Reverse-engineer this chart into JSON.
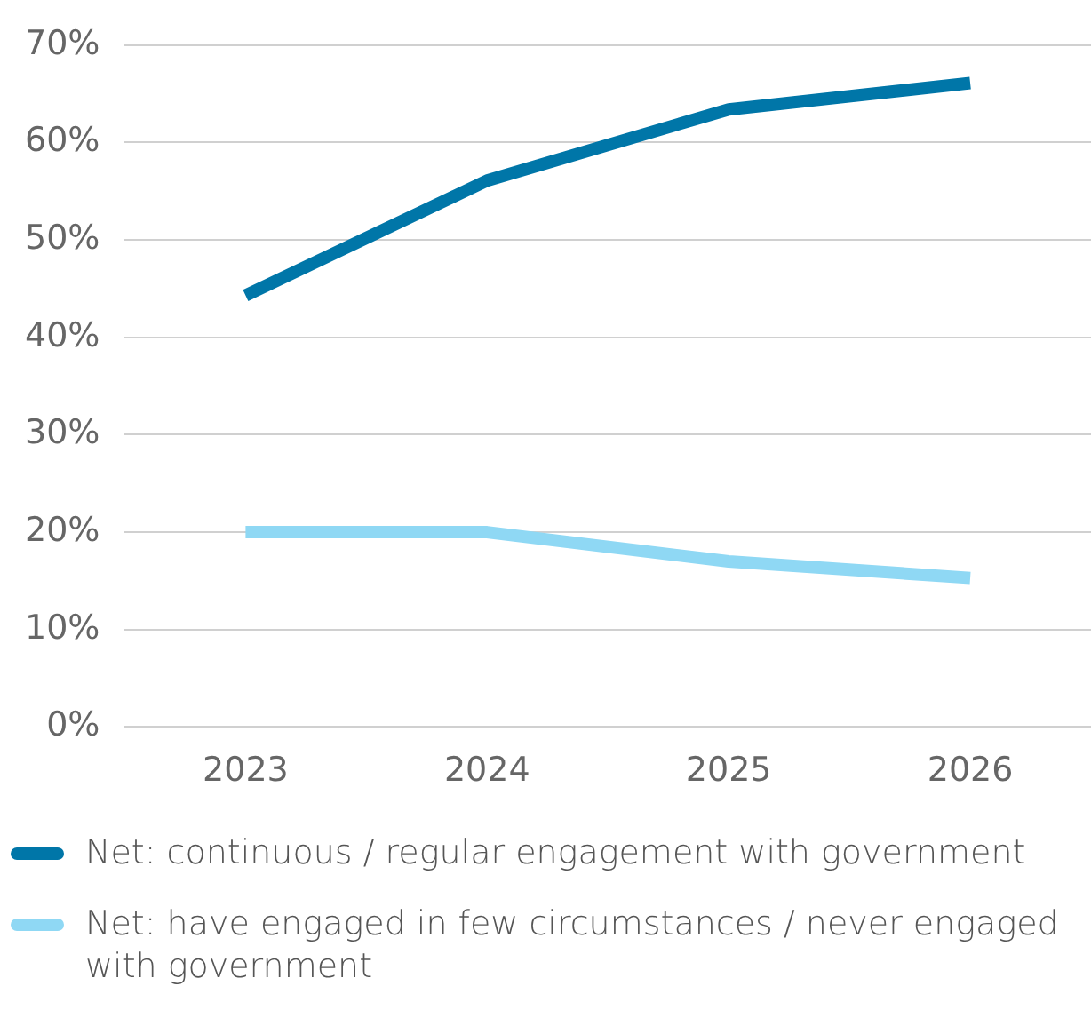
{
  "chart_data": {
    "type": "line",
    "categories": [
      "2023",
      "2024",
      "2025",
      "2026"
    ],
    "series": [
      {
        "name": "Net: continuous / regular engagement with government",
        "color": "#0076a8",
        "values": [
          44.3,
          56.1,
          63.4,
          66.1
        ]
      },
      {
        "name": "Net: have engaged in few circumstances / never engaged with government",
        "color": "#8fd8f4",
        "values": [
          20,
          20,
          17,
          15.3
        ]
      }
    ],
    "ylim": [
      0,
      70
    ],
    "yticks": [
      {
        "value": 0,
        "label": "0%"
      },
      {
        "value": 10,
        "label": "10%"
      },
      {
        "value": 20,
        "label": "20%"
      },
      {
        "value": 30,
        "label": "30%"
      },
      {
        "value": 40,
        "label": "40%"
      },
      {
        "value": 50,
        "label": "50%"
      },
      {
        "value": 60,
        "label": "60%"
      },
      {
        "value": 70,
        "label": "70%"
      }
    ],
    "grid": "y",
    "legend": "bottom",
    "marker": "none",
    "line_style": "solid"
  }
}
